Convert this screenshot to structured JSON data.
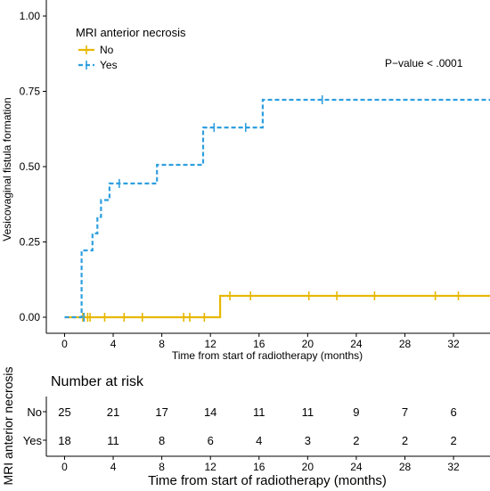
{
  "chart_data": [
    {
      "type": "line",
      "subtype": "kaplan-meier-step",
      "xlabel": "Time from start of radiotherapy (months)",
      "ylabel": "Vesicovaginal fistula formation",
      "xlim": [
        -1.5,
        35
      ],
      "ylim": [
        0,
        1
      ],
      "x_ticks": [
        0,
        4,
        8,
        12,
        16,
        20,
        24,
        28,
        32
      ],
      "y_ticks": [
        0,
        0.25,
        0.5,
        0.75,
        1
      ],
      "y_tick_labels": [
        "0.00",
        "0.25",
        "0.50",
        "0.75",
        "1.00"
      ],
      "grid": false,
      "legend": {
        "title": "MRI anterior necrosis",
        "position": "top-left"
      },
      "annotation": "P−value < .0001",
      "series": [
        {
          "name": "No",
          "color": "#E7B800",
          "dash": "solid",
          "steps": [
            [
              0,
              0
            ],
            [
              12.8,
              0.071
            ],
            [
              35,
              0.071
            ]
          ],
          "censored": [
            [
              1.5,
              0
            ],
            [
              1.9,
              0
            ],
            [
              2.1,
              0
            ],
            [
              3.3,
              0
            ],
            [
              4.9,
              0
            ],
            [
              6.4,
              0
            ],
            [
              9.8,
              0
            ],
            [
              10.3,
              0
            ],
            [
              11.5,
              0
            ],
            [
              13.6,
              0.071
            ],
            [
              15.3,
              0.071
            ],
            [
              20.1,
              0.071
            ],
            [
              22.4,
              0.071
            ],
            [
              25.5,
              0.071
            ],
            [
              30.5,
              0.071
            ],
            [
              32.4,
              0.071
            ]
          ]
        },
        {
          "name": "Yes",
          "color": "#2E9FDF",
          "dash": "dashed",
          "steps": [
            [
              0,
              0
            ],
            [
              1.4,
              0
            ],
            [
              1.4,
              0.222
            ],
            [
              2.3,
              0.222
            ],
            [
              2.3,
              0.278
            ],
            [
              2.7,
              0.278
            ],
            [
              2.7,
              0.333
            ],
            [
              3.0,
              0.333
            ],
            [
              3.0,
              0.389
            ],
            [
              3.7,
              0.389
            ],
            [
              3.7,
              0.444
            ],
            [
              7.6,
              0.444
            ],
            [
              7.6,
              0.506
            ],
            [
              11.4,
              0.506
            ],
            [
              11.4,
              0.63
            ],
            [
              16.3,
              0.63
            ],
            [
              16.3,
              0.722
            ],
            [
              35,
              0.722
            ]
          ],
          "censored": [
            [
              1.6,
              0
            ],
            [
              4.5,
              0.444
            ],
            [
              12.3,
              0.63
            ],
            [
              14.9,
              0.63
            ],
            [
              21.2,
              0.722
            ]
          ]
        }
      ]
    },
    {
      "type": "table",
      "title": "Number at risk",
      "ylabel": "MRI anterior necrosis",
      "xlabel": "Time from start of radiotherapy (months)",
      "x_ticks": [
        0,
        4,
        8,
        12,
        16,
        20,
        24,
        28,
        32
      ],
      "rows": [
        {
          "name": "No",
          "color": "#E7B800",
          "values": [
            25,
            21,
            17,
            14,
            11,
            11,
            9,
            7,
            6
          ]
        },
        {
          "name": "Yes",
          "color": "#2E9FDF",
          "values": [
            18,
            11,
            8,
            6,
            4,
            3,
            2,
            2,
            2
          ]
        }
      ]
    }
  ]
}
